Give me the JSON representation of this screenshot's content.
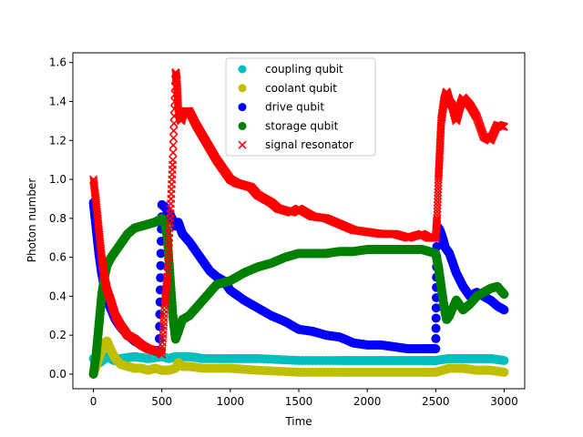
{
  "chart_data": {
    "type": "scatter",
    "title": "",
    "xlabel": "Time",
    "ylabel": "Photon number",
    "xlim": [
      -150,
      3150
    ],
    "ylim": [
      -0.075,
      1.65
    ],
    "xticks": [
      0,
      500,
      1000,
      1500,
      2000,
      2500,
      3000
    ],
    "yticks": [
      0.0,
      0.2,
      0.4,
      0.6,
      0.8,
      1.0,
      1.2,
      1.4,
      1.6
    ],
    "xtick_labels": [
      "0",
      "500",
      "1000",
      "1500",
      "2000",
      "2500",
      "3000"
    ],
    "ytick_labels": [
      "0.0",
      "0.2",
      "0.4",
      "0.6",
      "0.8",
      "1.0",
      "1.2",
      "1.4",
      "1.6"
    ],
    "grid": false,
    "legend_position": "top-center",
    "series": [
      {
        "name": "coupling qubit",
        "color": "#00bfbf",
        "marker": "circle",
        "x": [
          0,
          50,
          100,
          150,
          200,
          300,
          400,
          500,
          550,
          600,
          700,
          800,
          1000,
          1200,
          1500,
          1800,
          2000,
          2200,
          2400,
          2500,
          2600,
          2700,
          2800,
          2900,
          3000
        ],
        "y": [
          0.08,
          0.06,
          0.09,
          0.07,
          0.08,
          0.09,
          0.08,
          0.09,
          0.08,
          0.09,
          0.09,
          0.08,
          0.08,
          0.08,
          0.07,
          0.07,
          0.07,
          0.07,
          0.07,
          0.07,
          0.08,
          0.08,
          0.08,
          0.08,
          0.07
        ]
      },
      {
        "name": "coolant qubit",
        "color": "#bfbf00",
        "marker": "circle",
        "x": [
          0,
          30,
          60,
          80,
          100,
          130,
          160,
          200,
          250,
          300,
          350,
          400,
          450,
          500,
          550,
          600,
          620,
          650,
          700,
          800,
          1000,
          1200,
          1500,
          1800,
          2000,
          2200,
          2400,
          2500,
          2550,
          2600,
          2700,
          2800,
          2900,
          3000
        ],
        "y": [
          0.0,
          0.06,
          0.12,
          0.16,
          0.17,
          0.12,
          0.08,
          0.05,
          0.04,
          0.03,
          0.03,
          0.02,
          0.03,
          0.02,
          0.02,
          0.03,
          0.06,
          0.04,
          0.04,
          0.03,
          0.03,
          0.02,
          0.01,
          0.01,
          0.01,
          0.01,
          0.01,
          0.01,
          0.02,
          0.03,
          0.03,
          0.02,
          0.02,
          0.01
        ]
      },
      {
        "name": "drive qubit",
        "color": "#0000ff",
        "marker": "circle",
        "x": [
          0,
          20,
          40,
          60,
          80,
          100,
          130,
          160,
          200,
          250,
          300,
          350,
          400,
          450,
          480,
          500,
          520,
          560,
          600,
          620,
          650,
          700,
          750,
          800,
          850,
          900,
          950,
          1000,
          1100,
          1200,
          1300,
          1400,
          1500,
          1600,
          1700,
          1800,
          1900,
          2000,
          2100,
          2200,
          2300,
          2400,
          2450,
          2500,
          2510,
          2530,
          2550,
          2570,
          2600,
          2650,
          2700,
          2750,
          2800,
          2850,
          2900,
          2950,
          3000
        ],
        "y": [
          0.88,
          0.75,
          0.62,
          0.52,
          0.45,
          0.38,
          0.33,
          0.28,
          0.24,
          0.2,
          0.17,
          0.15,
          0.13,
          0.12,
          0.12,
          0.87,
          0.86,
          0.82,
          0.76,
          0.78,
          0.72,
          0.68,
          0.63,
          0.58,
          0.53,
          0.5,
          0.48,
          0.43,
          0.38,
          0.34,
          0.3,
          0.27,
          0.23,
          0.22,
          0.2,
          0.19,
          0.16,
          0.15,
          0.15,
          0.14,
          0.13,
          0.13,
          0.13,
          0.13,
          0.76,
          0.74,
          0.7,
          0.65,
          0.62,
          0.52,
          0.45,
          0.4,
          0.42,
          0.4,
          0.38,
          0.35,
          0.33
        ]
      },
      {
        "name": "storage qubit",
        "color": "#008000",
        "marker": "circle",
        "x": [
          0,
          20,
          40,
          60,
          80,
          100,
          130,
          160,
          200,
          250,
          300,
          350,
          400,
          450,
          500,
          520,
          540,
          560,
          580,
          600,
          620,
          650,
          700,
          750,
          800,
          850,
          900,
          950,
          1000,
          1100,
          1200,
          1300,
          1400,
          1500,
          1600,
          1700,
          1800,
          1900,
          2000,
          2100,
          2200,
          2300,
          2400,
          2450,
          2500,
          2520,
          2540,
          2560,
          2580,
          2600,
          2650,
          2700,
          2750,
          2800,
          2850,
          2900,
          2950,
          3000
        ],
        "y": [
          0.0,
          0.1,
          0.25,
          0.4,
          0.5,
          0.56,
          0.6,
          0.63,
          0.67,
          0.72,
          0.75,
          0.76,
          0.77,
          0.78,
          0.8,
          0.78,
          0.7,
          0.5,
          0.3,
          0.18,
          0.22,
          0.28,
          0.3,
          0.34,
          0.38,
          0.42,
          0.46,
          0.47,
          0.48,
          0.52,
          0.55,
          0.57,
          0.6,
          0.62,
          0.62,
          0.62,
          0.63,
          0.63,
          0.64,
          0.64,
          0.64,
          0.64,
          0.64,
          0.63,
          0.62,
          0.55,
          0.45,
          0.35,
          0.28,
          0.3,
          0.38,
          0.33,
          0.36,
          0.4,
          0.42,
          0.44,
          0.45,
          0.41
        ]
      },
      {
        "name": "signal resonator",
        "color": "#ff0000",
        "marker": "x",
        "x": [
          0,
          20,
          40,
          60,
          80,
          100,
          130,
          160,
          200,
          250,
          300,
          350,
          400,
          450,
          480,
          500,
          520,
          540,
          560,
          580,
          600,
          610,
          620,
          640,
          660,
          700,
          750,
          800,
          850,
          900,
          950,
          1000,
          1050,
          1100,
          1150,
          1200,
          1250,
          1300,
          1350,
          1400,
          1450,
          1500,
          1550,
          1600,
          1700,
          1800,
          1900,
          2000,
          2100,
          2200,
          2300,
          2400,
          2450,
          2500,
          2510,
          2520,
          2530,
          2540,
          2560,
          2580,
          2600,
          2620,
          2650,
          2680,
          2700,
          2750,
          2800,
          2850,
          2900,
          2950,
          3000
        ],
        "y": [
          1.0,
          0.88,
          0.74,
          0.6,
          0.5,
          0.43,
          0.37,
          0.3,
          0.25,
          0.2,
          0.18,
          0.15,
          0.13,
          0.12,
          0.12,
          0.1,
          0.35,
          0.5,
          0.8,
          1.1,
          1.55,
          1.5,
          1.35,
          1.3,
          1.35,
          1.35,
          1.28,
          1.22,
          1.16,
          1.1,
          1.05,
          1.0,
          0.98,
          0.97,
          0.96,
          0.92,
          0.9,
          0.88,
          0.85,
          0.84,
          0.83,
          0.85,
          0.83,
          0.81,
          0.8,
          0.77,
          0.74,
          0.73,
          0.72,
          0.72,
          0.7,
          0.72,
          0.7,
          0.7,
          0.8,
          1.0,
          1.15,
          1.3,
          1.4,
          1.45,
          1.4,
          1.38,
          1.3,
          1.38,
          1.42,
          1.38,
          1.32,
          1.22,
          1.2,
          1.28,
          1.27
        ]
      }
    ]
  }
}
